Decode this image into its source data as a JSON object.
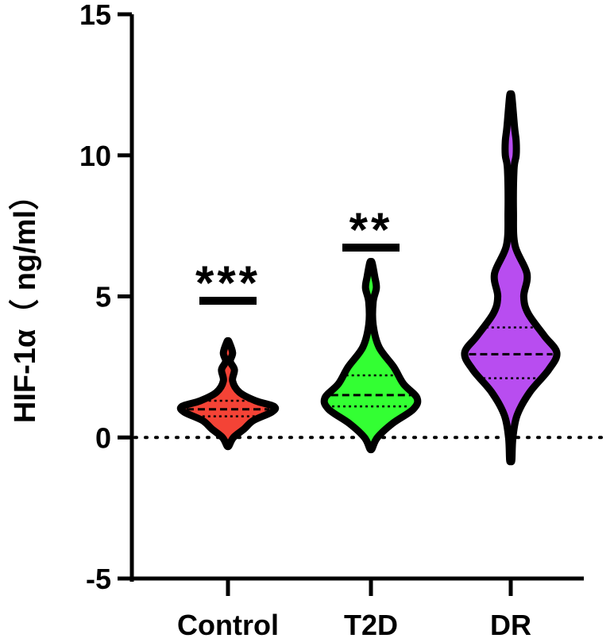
{
  "chart_data": {
    "type": "violin",
    "ylabel": "HIF-1α（ ng/ml）",
    "ylim": [
      -5,
      15
    ],
    "yticks": [
      -5,
      0,
      5,
      10,
      15
    ],
    "ytick_labels": [
      "-5",
      "0",
      "5",
      "10",
      "15"
    ],
    "reference_line_y": 0,
    "categories": [
      "Control",
      "T2D",
      "DR"
    ],
    "groups": [
      {
        "name": "Control",
        "color": "#f44336",
        "median": 1.0,
        "q1": 0.75,
        "q3": 1.3,
        "min": -0.3,
        "max": 3.4,
        "significance": "***",
        "density": [
          [
            -0.3,
            0.02
          ],
          [
            0.0,
            0.12
          ],
          [
            0.3,
            0.35
          ],
          [
            0.6,
            0.55
          ],
          [
            0.9,
            0.95
          ],
          [
            1.1,
            1.0
          ],
          [
            1.3,
            0.6
          ],
          [
            1.6,
            0.25
          ],
          [
            2.0,
            0.1
          ],
          [
            2.4,
            0.14
          ],
          [
            2.7,
            0.05
          ],
          [
            3.0,
            0.1
          ],
          [
            3.4,
            0.02
          ]
        ]
      },
      {
        "name": "T2D",
        "color": "#33ff33",
        "median": 1.5,
        "q1": 1.1,
        "q3": 2.2,
        "min": -0.4,
        "max": 6.2,
        "significance": "**",
        "density": [
          [
            -0.4,
            0.02
          ],
          [
            0.0,
            0.12
          ],
          [
            0.5,
            0.4
          ],
          [
            1.0,
            0.78
          ],
          [
            1.4,
            0.85
          ],
          [
            1.9,
            0.6
          ],
          [
            2.5,
            0.42
          ],
          [
            3.2,
            0.15
          ],
          [
            4.0,
            0.04
          ],
          [
            4.8,
            0.04
          ],
          [
            5.3,
            0.1
          ],
          [
            5.7,
            0.07
          ],
          [
            6.2,
            0.02
          ]
        ]
      },
      {
        "name": "DR",
        "color": "#b84df0",
        "median": 2.95,
        "q1": 2.1,
        "q3": 3.9,
        "min": -0.8,
        "max": 12.1,
        "significance": "",
        "density": [
          [
            -0.8,
            0.02
          ],
          [
            0.0,
            0.04
          ],
          [
            0.8,
            0.12
          ],
          [
            1.6,
            0.35
          ],
          [
            2.4,
            0.7
          ],
          [
            3.0,
            0.85
          ],
          [
            3.6,
            0.62
          ],
          [
            4.4,
            0.32
          ],
          [
            5.0,
            0.24
          ],
          [
            5.8,
            0.3
          ],
          [
            6.8,
            0.08
          ],
          [
            8.0,
            0.05
          ],
          [
            9.5,
            0.06
          ],
          [
            10.0,
            0.1
          ],
          [
            10.5,
            0.1
          ],
          [
            11.0,
            0.07
          ],
          [
            12.1,
            0.02
          ]
        ]
      }
    ]
  }
}
